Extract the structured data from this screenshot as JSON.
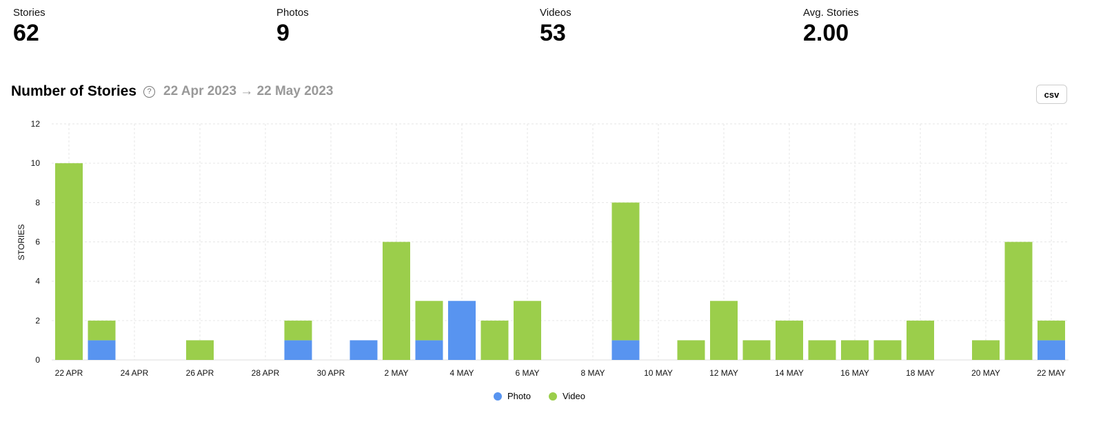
{
  "stats": [
    {
      "label": "Stories",
      "value": "62"
    },
    {
      "label": "Photos",
      "value": "9"
    },
    {
      "label": "Videos",
      "value": "53"
    },
    {
      "label": "Avg. Stories",
      "value": "2.00"
    }
  ],
  "section": {
    "title": "Number of Stories",
    "help_icon": "question-circle-icon",
    "date_range": "22 Apr 2023 → 22 May 2023",
    "csv_label": "csv"
  },
  "chart_data": {
    "type": "bar",
    "stacked": true,
    "ylabel": "STORIES",
    "ylim": [
      0,
      12
    ],
    "yticks": [
      0,
      2,
      4,
      6,
      8,
      10,
      12
    ],
    "grid": true,
    "legend": "bottom",
    "categories": [
      "22 Apr",
      "23 Apr",
      "24 Apr",
      "25 Apr",
      "26 Apr",
      "27 Apr",
      "28 Apr",
      "29 Apr",
      "30 Apr",
      "1 May",
      "2 May",
      "3 May",
      "4 May",
      "5 May",
      "6 May",
      "7 May",
      "8 May",
      "9 May",
      "10 May",
      "11 May",
      "12 May",
      "13 May",
      "14 May",
      "15 May",
      "16 May",
      "17 May",
      "18 May",
      "19 May",
      "20 May",
      "21 May",
      "22 May"
    ],
    "xtick_labels": [
      "22 APR",
      "24 APR",
      "26 APR",
      "28 APR",
      "30 APR",
      "2 MAY",
      "4 MAY",
      "6 MAY",
      "8 MAY",
      "10 MAY",
      "12 MAY",
      "14 MAY",
      "16 MAY",
      "18 MAY",
      "20 MAY",
      "22 MAY"
    ],
    "series": [
      {
        "name": "Photo",
        "color": "#5894f0",
        "values": [
          0,
          1,
          0,
          0,
          0,
          0,
          0,
          1,
          0,
          1,
          0,
          1,
          3,
          0,
          0,
          0,
          0,
          1,
          0,
          0,
          0,
          0,
          0,
          0,
          0,
          0,
          0,
          0,
          0,
          0,
          1
        ]
      },
      {
        "name": "Video",
        "color": "#9bce4b",
        "values": [
          10,
          1,
          0,
          0,
          1,
          0,
          0,
          1,
          0,
          0,
          6,
          2,
          0,
          2,
          3,
          0,
          0,
          7,
          0,
          1,
          3,
          1,
          2,
          1,
          1,
          1,
          2,
          0,
          1,
          6,
          1
        ]
      }
    ]
  }
}
